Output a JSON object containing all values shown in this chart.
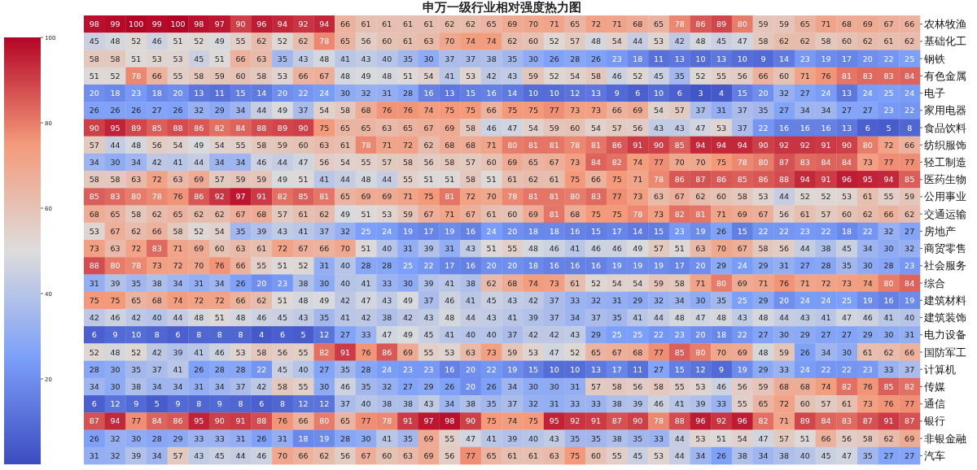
{
  "chart_data": {
    "type": "heatmap",
    "title": "申万一级行业相对强度热力图",
    "categories": [
      null,
      null,
      null,
      null,
      null,
      null,
      null,
      null,
      null,
      null,
      null,
      null,
      null,
      null,
      null,
      null,
      null,
      null,
      null,
      null,
      null,
      null,
      null,
      null,
      null,
      null,
      null,
      null,
      null,
      null,
      null,
      null,
      null,
      null,
      null,
      null,
      null,
      null,
      null,
      null
    ],
    "y_categories": [
      "农林牧渔",
      "基础化工",
      "钢铁",
      "有色金属",
      "电子",
      "家用电器",
      "食品饮料",
      "纺织服饰",
      "轻工制造",
      "医药生物",
      "公用事业",
      "交通运输",
      "房地产",
      "商贸零售",
      "社会服务",
      "综合",
      "建筑材料",
      "建筑装饰",
      "电力设备",
      "国防军工",
      "计算机",
      "传媒",
      "通信",
      "银行",
      "非银金融",
      "汽车"
    ],
    "cells": [
      [
        98,
        99,
        100,
        99,
        100,
        98,
        97,
        90,
        96,
        94,
        92,
        94,
        66,
        61,
        61,
        61,
        61,
        62,
        62,
        65,
        69,
        70,
        71,
        65,
        72,
        71,
        68,
        65,
        78,
        86,
        89,
        80,
        59,
        59,
        65,
        71,
        68,
        69,
        67,
        66
      ],
      [
        45,
        48,
        52,
        46,
        51,
        52,
        49,
        55,
        62,
        52,
        62,
        78,
        65,
        56,
        60,
        61,
        63,
        70,
        74,
        74,
        62,
        60,
        52,
        57,
        48,
        54,
        44,
        53,
        42,
        48,
        45,
        47,
        58,
        62,
        62,
        58,
        60,
        62,
        61,
        62
      ],
      [
        58,
        58,
        51,
        53,
        53,
        45,
        51,
        66,
        63,
        35,
        43,
        48,
        41,
        43,
        40,
        35,
        30,
        37,
        37,
        38,
        35,
        30,
        26,
        28,
        26,
        23,
        18,
        11,
        13,
        10,
        13,
        10,
        9,
        14,
        23,
        19,
        17,
        20,
        22,
        25
      ],
      [
        51,
        52,
        78,
        66,
        55,
        58,
        59,
        60,
        58,
        53,
        66,
        67,
        48,
        49,
        48,
        51,
        54,
        41,
        53,
        42,
        43,
        59,
        52,
        54,
        58,
        46,
        52,
        45,
        35,
        52,
        55,
        56,
        66,
        60,
        71,
        76,
        81,
        83,
        83,
        84
      ],
      [
        20,
        18,
        23,
        18,
        20,
        13,
        11,
        15,
        14,
        20,
        22,
        24,
        30,
        32,
        31,
        28,
        16,
        13,
        15,
        16,
        14,
        10,
        10,
        12,
        13,
        9,
        6,
        10,
        6,
        3,
        4,
        15,
        20,
        32,
        27,
        24,
        13,
        24,
        25,
        24
      ],
      [
        26,
        26,
        26,
        27,
        26,
        32,
        29,
        34,
        44,
        49,
        37,
        54,
        58,
        68,
        76,
        76,
        74,
        75,
        75,
        66,
        75,
        75,
        77,
        73,
        73,
        66,
        69,
        54,
        57,
        37,
        31,
        37,
        35,
        27,
        34,
        34,
        27,
        27,
        23,
        22
      ],
      [
        90,
        95,
        89,
        85,
        88,
        86,
        82,
        84,
        88,
        89,
        90,
        75,
        65,
        65,
        63,
        65,
        67,
        69,
        58,
        46,
        47,
        54,
        59,
        60,
        54,
        57,
        56,
        43,
        43,
        47,
        53,
        37,
        22,
        16,
        16,
        16,
        13,
        6,
        5,
        8
      ],
      [
        57,
        44,
        48,
        56,
        54,
        49,
        54,
        55,
        58,
        59,
        60,
        63,
        61,
        78,
        71,
        72,
        62,
        68,
        68,
        71,
        80,
        81,
        81,
        78,
        81,
        86,
        91,
        90,
        85,
        94,
        94,
        94,
        90,
        92,
        92,
        91,
        90,
        80,
        72,
        66
      ],
      [
        34,
        30,
        34,
        42,
        41,
        44,
        34,
        34,
        46,
        44,
        47,
        56,
        54,
        55,
        57,
        58,
        56,
        58,
        57,
        60,
        69,
        65,
        67,
        73,
        84,
        82,
        74,
        77,
        70,
        70,
        75,
        78,
        80,
        87,
        83,
        84,
        84,
        73,
        77,
        77
      ],
      [
        58,
        58,
        63,
        72,
        63,
        69,
        57,
        59,
        59,
        49,
        51,
        41,
        44,
        48,
        44,
        55,
        51,
        51,
        58,
        51,
        61,
        62,
        61,
        75,
        66,
        75,
        71,
        78,
        86,
        87,
        86,
        85,
        86,
        88,
        94,
        91,
        96,
        95,
        94,
        85
      ],
      [
        85,
        83,
        80,
        78,
        76,
        86,
        92,
        97,
        91,
        82,
        85,
        81,
        65,
        69,
        69,
        71,
        75,
        81,
        72,
        70,
        78,
        81,
        81,
        80,
        83,
        77,
        73,
        63,
        67,
        62,
        60,
        58,
        53,
        44,
        52,
        52,
        53,
        61,
        55,
        59
      ],
      [
        68,
        65,
        58,
        62,
        65,
        62,
        62,
        67,
        68,
        57,
        61,
        62,
        49,
        51,
        53,
        59,
        67,
        71,
        67,
        61,
        60,
        69,
        81,
        68,
        75,
        75,
        78,
        73,
        82,
        81,
        71,
        69,
        67,
        56,
        61,
        57,
        60,
        62,
        66,
        62
      ],
      [
        53,
        67,
        62,
        66,
        58,
        52,
        54,
        35,
        39,
        43,
        41,
        37,
        32,
        25,
        24,
        19,
        17,
        19,
        16,
        24,
        20,
        18,
        18,
        16,
        15,
        17,
        14,
        15,
        23,
        19,
        26,
        15,
        22,
        22,
        23,
        22,
        18,
        22,
        32,
        27
      ],
      [
        73,
        63,
        72,
        83,
        71,
        69,
        60,
        63,
        61,
        72,
        67,
        66,
        70,
        51,
        40,
        31,
        39,
        31,
        43,
        51,
        55,
        48,
        46,
        41,
        46,
        46,
        49,
        57,
        51,
        63,
        70,
        67,
        58,
        56,
        44,
        38,
        45,
        34,
        30,
        32
      ],
      [
        88,
        80,
        78,
        73,
        72,
        70,
        76,
        66,
        55,
        51,
        52,
        31,
        40,
        28,
        28,
        25,
        22,
        17,
        16,
        20,
        20,
        18,
        16,
        16,
        16,
        19,
        19,
        19,
        17,
        20,
        29,
        24,
        29,
        31,
        27,
        28,
        35,
        30,
        28,
        23
      ],
      [
        31,
        39,
        35,
        38,
        34,
        31,
        34,
        26,
        20,
        23,
        38,
        30,
        40,
        41,
        33,
        30,
        39,
        41,
        38,
        62,
        68,
        74,
        73,
        61,
        52,
        54,
        54,
        59,
        58,
        71,
        80,
        69,
        71,
        76,
        71,
        72,
        73,
        74,
        80,
        84
      ],
      [
        75,
        75,
        65,
        68,
        74,
        72,
        72,
        66,
        62,
        51,
        48,
        49,
        42,
        47,
        43,
        49,
        37,
        46,
        41,
        45,
        43,
        42,
        37,
        33,
        32,
        31,
        29,
        32,
        34,
        30,
        35,
        25,
        29,
        20,
        24,
        24,
        25,
        19,
        16,
        19
      ],
      [
        42,
        46,
        42,
        40,
        44,
        48,
        51,
        48,
        46,
        45,
        43,
        35,
        41,
        42,
        38,
        42,
        43,
        48,
        44,
        43,
        41,
        39,
        37,
        34,
        37,
        35,
        41,
        44,
        48,
        47,
        48,
        43,
        48,
        44,
        43,
        41,
        47,
        46,
        41,
        40
      ],
      [
        6,
        9,
        10,
        8,
        6,
        8,
        8,
        8,
        4,
        6,
        5,
        12,
        27,
        33,
        47,
        49,
        45,
        41,
        40,
        40,
        37,
        42,
        42,
        43,
        29,
        25,
        25,
        22,
        23,
        20,
        18,
        22,
        27,
        30,
        29,
        27,
        27,
        29,
        30,
        31
      ],
      [
        52,
        48,
        52,
        42,
        39,
        41,
        46,
        53,
        58,
        56,
        55,
        82,
        91,
        76,
        86,
        69,
        55,
        53,
        63,
        73,
        59,
        53,
        47,
        52,
        65,
        67,
        68,
        77,
        85,
        80,
        70,
        69,
        48,
        59,
        26,
        34,
        30,
        61,
        62,
        66
      ],
      [
        28,
        30,
        35,
        37,
        41,
        26,
        28,
        28,
        22,
        45,
        40,
        27,
        35,
        28,
        24,
        23,
        23,
        16,
        20,
        22,
        19,
        15,
        10,
        10,
        13,
        17,
        11,
        27,
        15,
        12,
        9,
        19,
        29,
        33,
        24,
        22,
        22,
        23,
        33,
        37
      ],
      [
        34,
        30,
        38,
        34,
        34,
        31,
        34,
        37,
        42,
        58,
        55,
        30,
        46,
        35,
        32,
        27,
        29,
        26,
        20,
        26,
        34,
        30,
        30,
        31,
        57,
        58,
        56,
        58,
        55,
        53,
        46,
        56,
        59,
        68,
        68,
        74,
        82,
        76,
        85,
        82
      ],
      [
        6,
        12,
        9,
        5,
        9,
        8,
        9,
        8,
        6,
        8,
        12,
        12,
        37,
        40,
        38,
        38,
        43,
        34,
        38,
        35,
        37,
        32,
        31,
        33,
        33,
        38,
        39,
        46,
        41,
        39,
        33,
        55,
        65,
        72,
        60,
        57,
        61,
        73,
        76,
        77
      ],
      [
        87,
        94,
        77,
        84,
        86,
        95,
        90,
        91,
        88,
        76,
        66,
        80,
        65,
        77,
        78,
        91,
        97,
        98,
        90,
        75,
        74,
        75,
        95,
        92,
        91,
        87,
        90,
        78,
        88,
        96,
        92,
        96,
        82,
        71,
        89,
        84,
        83,
        87,
        91,
        87
      ],
      [
        26,
        32,
        30,
        28,
        29,
        33,
        33,
        31,
        26,
        31,
        18,
        19,
        28,
        30,
        41,
        35,
        69,
        55,
        47,
        41,
        39,
        40,
        43,
        35,
        35,
        38,
        35,
        33,
        44,
        53,
        51,
        54,
        47,
        57,
        51,
        66,
        56,
        58,
        62,
        69
      ],
      [
        31,
        32,
        39,
        34,
        57,
        43,
        45,
        44,
        46,
        70,
        66,
        62,
        56,
        67,
        60,
        63,
        69,
        56,
        77,
        65,
        61,
        61,
        63,
        75,
        60,
        55,
        45,
        53,
        44,
        34,
        26,
        38,
        34,
        38,
        40,
        45,
        47,
        35,
        27,
        27
      ]
    ],
    "clim": [
      0,
      100
    ],
    "cticks": [
      20,
      40,
      60,
      80,
      100
    ],
    "data_labels": true
  }
}
